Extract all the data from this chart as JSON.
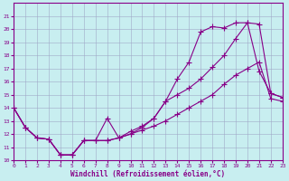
{
  "xlabel": "Windchill (Refroidissement éolien,°C)",
  "bg_color": "#c8eef0",
  "grid_color": "#a0a8c8",
  "line_color": "#880088",
  "xlim": [
    0,
    23
  ],
  "ylim": [
    10,
    22
  ],
  "xticks": [
    0,
    1,
    2,
    3,
    4,
    5,
    6,
    7,
    8,
    9,
    10,
    11,
    12,
    13,
    14,
    15,
    16,
    17,
    18,
    19,
    20,
    21,
    22,
    23
  ],
  "yticks": [
    10,
    11,
    12,
    13,
    14,
    15,
    16,
    17,
    18,
    19,
    20,
    21
  ],
  "line1_x": [
    0,
    1,
    2,
    3,
    4,
    5,
    6,
    7,
    8,
    9,
    10,
    11,
    12,
    13,
    14,
    15,
    16,
    17,
    18,
    19,
    20,
    21,
    22,
    23
  ],
  "line1_y": [
    14.0,
    12.5,
    11.7,
    11.6,
    10.4,
    10.4,
    11.5,
    11.5,
    11.5,
    11.7,
    12.0,
    12.3,
    12.6,
    13.0,
    13.5,
    14.0,
    14.5,
    15.0,
    15.8,
    16.5,
    17.0,
    17.5,
    14.7,
    14.5
  ],
  "line2_x": [
    0,
    1,
    2,
    3,
    4,
    5,
    6,
    7,
    8,
    9,
    10,
    11,
    12,
    13,
    14,
    15,
    16,
    17,
    18,
    19,
    20,
    21,
    22,
    23
  ],
  "line2_y": [
    14.0,
    12.5,
    11.7,
    11.6,
    10.4,
    10.4,
    11.5,
    11.5,
    13.2,
    11.7,
    12.0,
    12.5,
    13.2,
    14.5,
    16.2,
    17.5,
    19.8,
    20.2,
    20.1,
    20.5,
    20.5,
    16.8,
    15.1,
    14.8
  ],
  "line3_x": [
    0,
    1,
    2,
    3,
    4,
    5,
    6,
    7,
    8,
    9,
    10,
    11,
    12,
    13,
    14,
    15,
    16,
    17,
    18,
    19,
    20,
    21,
    22,
    23
  ],
  "line3_y": [
    14.0,
    12.5,
    11.7,
    11.6,
    10.4,
    10.4,
    11.5,
    11.5,
    11.5,
    11.7,
    12.2,
    12.6,
    13.2,
    14.5,
    15.0,
    15.5,
    16.2,
    17.1,
    18.0,
    19.3,
    20.5,
    20.4,
    15.1,
    14.8
  ]
}
